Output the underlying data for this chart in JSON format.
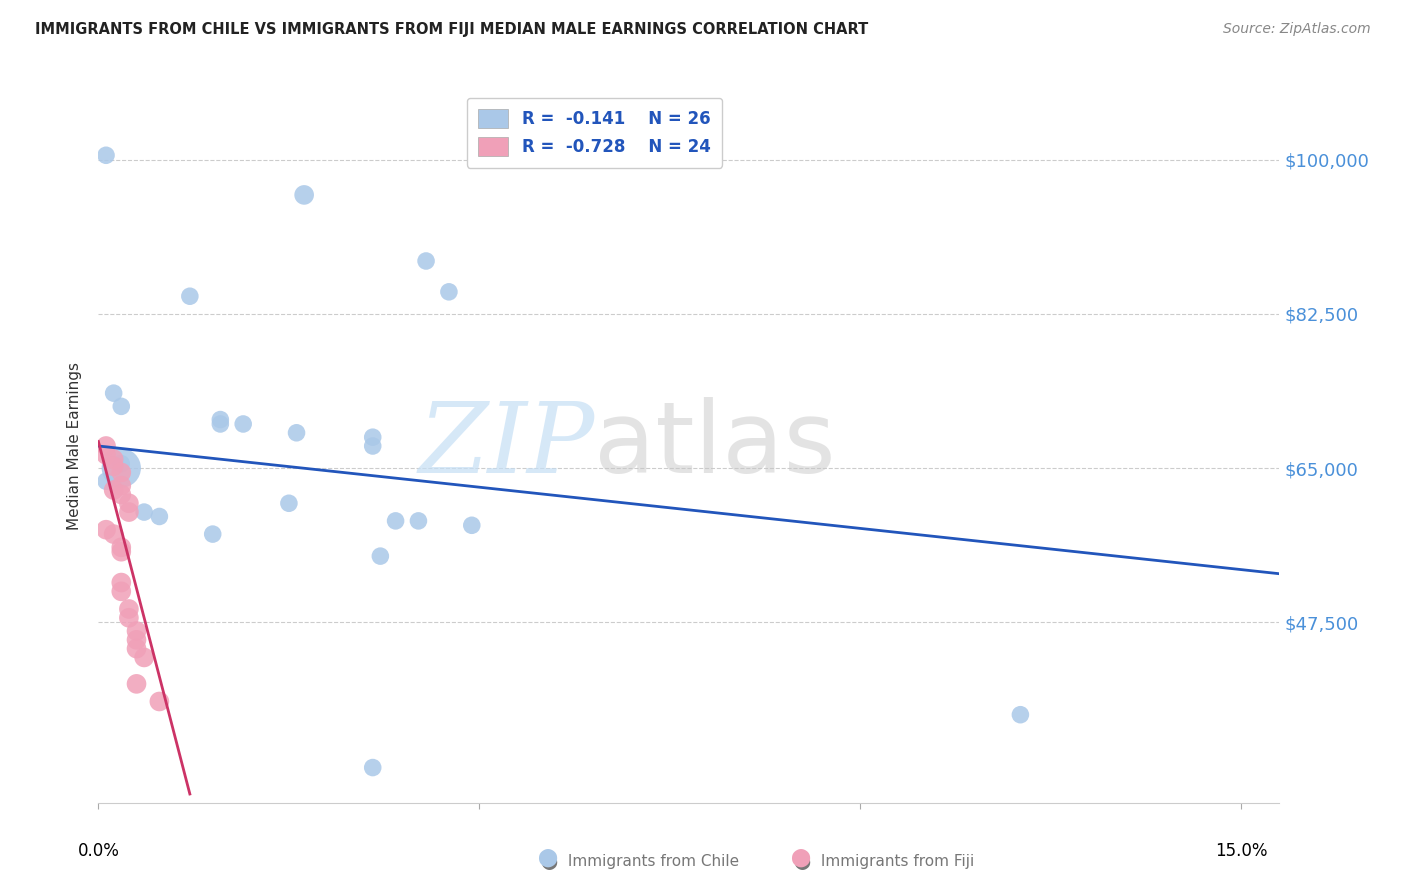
{
  "title": "IMMIGRANTS FROM CHILE VS IMMIGRANTS FROM FIJI MEDIAN MALE EARNINGS CORRELATION CHART",
  "source": "Source: ZipAtlas.com",
  "ylabel": "Median Male Earnings",
  "xlim": [
    0.0,
    0.155
  ],
  "ylim": [
    27000,
    108000
  ],
  "yticks": [
    47500,
    65000,
    82500,
    100000
  ],
  "ytick_labels": [
    "$47,500",
    "$65,000",
    "$82,500",
    "$100,000"
  ],
  "legend_r_chile": "-0.141",
  "legend_n_chile": "26",
  "legend_r_fiji": "-0.728",
  "legend_n_fiji": "24",
  "chile_color": "#aac8e8",
  "fiji_color": "#f0a0b8",
  "trendline_chile_color": "#2255bb",
  "trendline_fiji_color": "#cc3366",
  "trendline_chile": [
    [
      0.0,
      67500
    ],
    [
      0.155,
      53000
    ]
  ],
  "trendline_fiji": [
    [
      0.0,
      68000
    ],
    [
      0.012,
      28000
    ]
  ],
  "chile_data": [
    [
      0.027,
      96000,
      200
    ],
    [
      0.012,
      84500,
      160
    ],
    [
      0.043,
      88500,
      160
    ],
    [
      0.046,
      85000,
      160
    ],
    [
      0.002,
      73500,
      160
    ],
    [
      0.003,
      72000,
      160
    ],
    [
      0.016,
      70500,
      160
    ],
    [
      0.019,
      70000,
      160
    ],
    [
      0.016,
      70000,
      160
    ],
    [
      0.026,
      69000,
      160
    ],
    [
      0.036,
      68500,
      160
    ],
    [
      0.036,
      67500,
      160
    ],
    [
      0.003,
      65500,
      160
    ],
    [
      0.003,
      65000,
      800
    ],
    [
      0.001,
      63500,
      160
    ],
    [
      0.006,
      60000,
      160
    ],
    [
      0.008,
      59500,
      160
    ],
    [
      0.039,
      59000,
      160
    ],
    [
      0.042,
      59000,
      160
    ],
    [
      0.049,
      58500,
      160
    ],
    [
      0.015,
      57500,
      160
    ],
    [
      0.025,
      61000,
      160
    ],
    [
      0.037,
      55000,
      160
    ],
    [
      0.036,
      31000,
      160
    ],
    [
      0.121,
      37000,
      160
    ],
    [
      0.001,
      100500,
      160
    ]
  ],
  "fiji_data": [
    [
      0.001,
      67500,
      200
    ],
    [
      0.001,
      66500,
      200
    ],
    [
      0.002,
      66000,
      200
    ],
    [
      0.002,
      65200,
      200
    ],
    [
      0.003,
      64500,
      200
    ],
    [
      0.003,
      63000,
      200
    ],
    [
      0.002,
      62500,
      200
    ],
    [
      0.003,
      62000,
      200
    ],
    [
      0.004,
      61000,
      200
    ],
    [
      0.004,
      60000,
      200
    ],
    [
      0.001,
      58000,
      200
    ],
    [
      0.002,
      57500,
      200
    ],
    [
      0.003,
      56000,
      200
    ],
    [
      0.003,
      55500,
      200
    ],
    [
      0.003,
      52000,
      200
    ],
    [
      0.003,
      51000,
      200
    ],
    [
      0.004,
      49000,
      200
    ],
    [
      0.004,
      48000,
      200
    ],
    [
      0.005,
      46500,
      200
    ],
    [
      0.005,
      45500,
      200
    ],
    [
      0.005,
      44500,
      200
    ],
    [
      0.006,
      43500,
      200
    ],
    [
      0.005,
      40500,
      200
    ],
    [
      0.008,
      38500,
      200
    ]
  ]
}
